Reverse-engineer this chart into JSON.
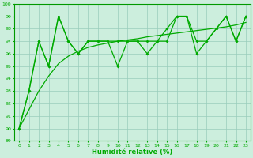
{
  "x": [
    0,
    1,
    2,
    3,
    4,
    5,
    6,
    7,
    8,
    9,
    10,
    11,
    12,
    13,
    14,
    15,
    16,
    17,
    18,
    19,
    20,
    21,
    22,
    23
  ],
  "jagged1": [
    90,
    93,
    97,
    95,
    99,
    97,
    96,
    97,
    97,
    97,
    95,
    97,
    97,
    96,
    97,
    97,
    99,
    99,
    96,
    97,
    98,
    99,
    97,
    99
  ],
  "jagged2": [
    90,
    93,
    97,
    95,
    99,
    97,
    96,
    97,
    97,
    97,
    97,
    97,
    97,
    97,
    97,
    98,
    99,
    99,
    97,
    97,
    98,
    99,
    97,
    99
  ],
  "smooth": [
    90,
    91.5,
    93,
    94.2,
    95.2,
    95.8,
    96.2,
    96.5,
    96.7,
    96.85,
    97.0,
    97.1,
    97.2,
    97.35,
    97.45,
    97.55,
    97.65,
    97.75,
    97.85,
    97.95,
    98.05,
    98.15,
    98.3,
    98.5
  ],
  "xlabel": "Humidité relative (%)",
  "ylim_min": 89,
  "ylim_max": 100,
  "xlim_min": -0.5,
  "xlim_max": 23.5,
  "line_color": "#00aa00",
  "bg_color": "#cceedd",
  "grid_color": "#99ccbb",
  "spine_color": "#009900"
}
